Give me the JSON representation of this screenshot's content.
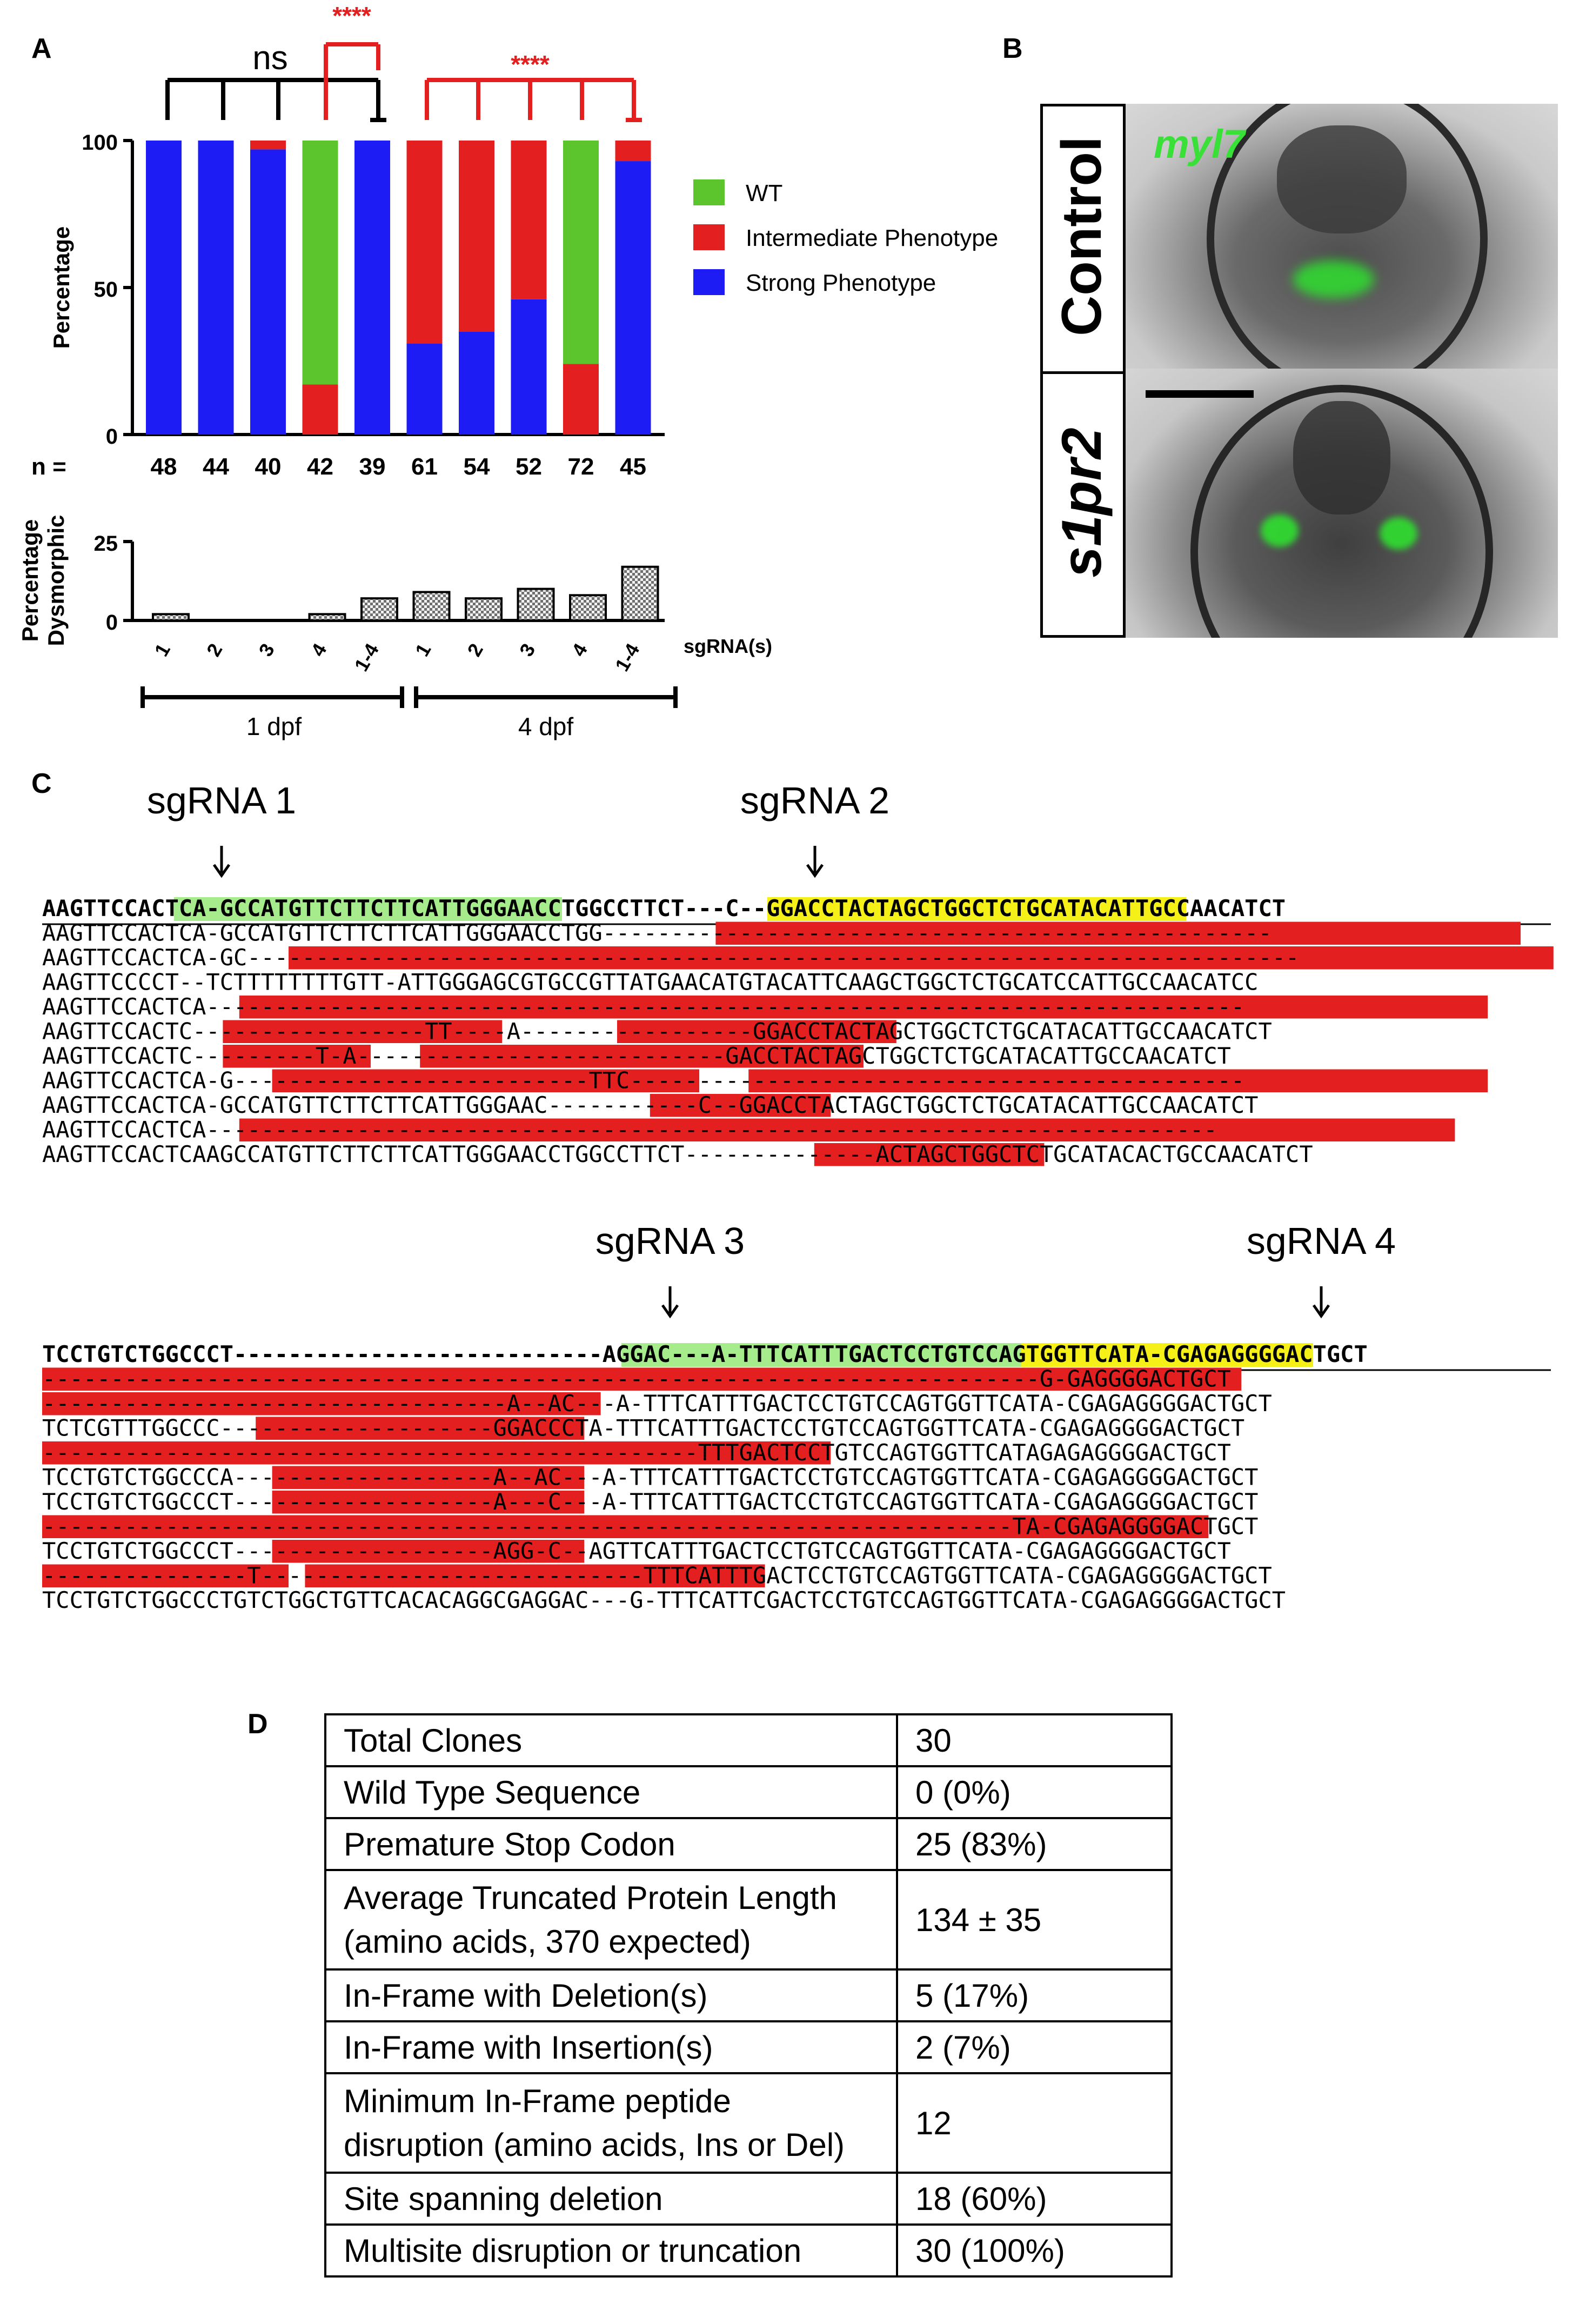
{
  "panels": {
    "a": "A",
    "b": "B",
    "c": "C",
    "d": "D"
  },
  "panelA": {
    "sig": {
      "ns": "ns",
      "stars_top": "****",
      "stars_right": "****"
    },
    "top_chart": {
      "type": "bar",
      "ylabel": "Percentage",
      "yticks": [
        "0",
        "50",
        "100"
      ],
      "ylim": [
        0,
        100
      ],
      "n_prefix": "n =",
      "n_values": [
        "48",
        "44",
        "40",
        "42",
        "39",
        "61",
        "54",
        "52",
        "72",
        "45"
      ],
      "legend": [
        {
          "label": "WT",
          "color": "#5cc42c"
        },
        {
          "label": "Intermediate Phenotype",
          "color": "#e41f1f"
        },
        {
          "label": "Strong Phenotype",
          "color": "#1d1cf5"
        }
      ],
      "bars": [
        {
          "strong": 100,
          "intermediate": 0,
          "wt": 0
        },
        {
          "strong": 100,
          "intermediate": 0,
          "wt": 0
        },
        {
          "strong": 97,
          "intermediate": 3,
          "wt": 0
        },
        {
          "strong": 0,
          "intermediate": 17,
          "wt": 83
        },
        {
          "strong": 100,
          "intermediate": 0,
          "wt": 0
        },
        {
          "strong": 31,
          "intermediate": 69,
          "wt": 0
        },
        {
          "strong": 35,
          "intermediate": 65,
          "wt": 0
        },
        {
          "strong": 46,
          "intermediate": 54,
          "wt": 0
        },
        {
          "strong": 0,
          "intermediate": 24,
          "wt": 76
        },
        {
          "strong": 93,
          "intermediate": 7,
          "wt": 0
        }
      ]
    },
    "bottom_chart": {
      "type": "bar",
      "ylabel_line1": "Percentage",
      "ylabel_line2": "Dysmorphic",
      "yticks": [
        "0",
        "25"
      ],
      "ylim": [
        0,
        25
      ],
      "values": [
        2,
        0,
        0,
        2,
        7,
        9,
        7,
        10,
        8,
        17
      ],
      "categories": [
        "1",
        "2",
        "3",
        "4",
        "1-4",
        "1",
        "2",
        "3",
        "4",
        "1-4"
      ],
      "xlabel": "sgRNA(s)",
      "groups": [
        "1 dpf",
        "4 dpf"
      ]
    }
  },
  "panelB": {
    "label_top": "Control",
    "label_bottom": "s1pr2",
    "marker": "myl7",
    "marker_color": "#38e038"
  },
  "panelC": {
    "colors": {
      "mismatch": "#e41f1f",
      "green": "#a6ec8c",
      "yellow": "#f5f018"
    },
    "guides": [
      "sgRNA 1",
      "sgRNA 2",
      "sgRNA 3",
      "sgRNA 4"
    ],
    "block1": [
      "AAGTTCCACTCA-GCCATGTTCTTCTTCATTGGGAACCTGGCCTTCT---C--GGACCTACTAGCTGGCTCTGCATACATTGCCAACATCT",
      "AAGTTCCACTCA-GCCATGTTCTTCTTCATTGGGAACCTGG-------------------------------------------------",
      "AAGTTCCACTCA-GC-----------------------------------------------------------------------------",
      "AAGTTCCCCT--TCTTTTTTTTGTT-ATTGGGAGCGTGCCGTTATGAACATGTACATTCAAGCTGGCTCTGCATCCATTGCCAACATCC",
      "AAGTTCCACTCA----------------------------------------------------------------------------",
      "AAGTTCCACTC-----------------TT----A-----------------GGACCTACTAGCTGGCTCTGCATACATTGCCAACATCT",
      "AAGTTCCACTC---------T-A---------------------------GACCTACTAGCTGGCTCTGCATACATTGCCAACATCT",
      "AAGTTCCACTCA-G--------------------------TTC---------------------------------------------",
      "AAGTTCCACTCA-GCCATGTTCTTCTTCATTGGGAAC-----------C--GGACCTACTAGCTGGCTCTGCATACATTGCCAACATCT",
      "AAGTTCCACTCA--------------------------------------------------------------------------",
      "AAGTTCCACTCAAGCCATGTTCTTCTTCATTGGGAACCTGGCCTTCT--------------ACTAGCTGGCTCTGCATACACTGCCAACATCT"
    ],
    "block2": [
      "TCCTGTCTGGCCCT---------------------------AGGAC---A-TTTCATTTGACTCCTGTCCAGTGGTTCATA-CGAGAGGGGACTGCT",
      "-------------------------------------------------------------------------G-GAGGGGACTGCT",
      "----------------------------------A--AC---A-TTTCATTTGACTCCTGTCCAGTGGTTCATA-CGAGAGGGGACTGCT",
      "TCTCGTTTGGCCC--------------------GGACCCTA-TTTCATTTGACTCCTGTCCAGTGGTTCATA-CGAGAGGGGACTGCT",
      "------------------------------------------------TTTGACTCCTGTCCAGTGGTTCATAGAGAGGGGACTGCT",
      "TCCTGTCTGGCCCA-------------------A--AC---A-TTTCATTTGACTCCTGTCCAGTGGTTCATA-CGAGAGGGGACTGCT",
      "TCCTGTCTGGCCCT-------------------A---C---A-TTTCATTTGACTCCTGTCCAGTGGTTCATA-CGAGAGGGGACTGCT",
      "-----------------------------------------------------------------------TA-CGAGAGGGGACTGCT",
      "TCCTGTCTGGCCCT-------------------AGG-C--AGTTCATTTGACTCCTGTCCAGTGGTTCATA-CGAGAGGGGACTGCT",
      "---------------T----------------------------TTTCATTTGACTCCTGTCCAGTGGTTCATA-CGAGAGGGGACTGCT",
      "TCCTGTCTGGCCCTGTCTGGCTGTTCACACAGGCGAGGAC---G-TTTCATTCGACTCCTGTCCAGTGGTTCATA-CGAGAGGGGACTGCT"
    ]
  },
  "panelD": {
    "rows": [
      {
        "label": "Total Clones",
        "value": "30"
      },
      {
        "label": "Wild Type Sequence",
        "value": "0 (0%)"
      },
      {
        "label": "Premature Stop Codon",
        "value": "25 (83%)"
      },
      {
        "label": "Average Truncated Protein Length",
        "label2": "(amino acids, 370 expected)",
        "value": "134 ± 35"
      },
      {
        "label": "In-Frame with Deletion(s)",
        "value": "5 (17%)"
      },
      {
        "label": "In-Frame with Insertion(s)",
        "value": "2 (7%)"
      },
      {
        "label": "Minimum In-Frame peptide",
        "label2": "disruption (amino acids, Ins or Del)",
        "value": "12"
      },
      {
        "label": "Site spanning deletion",
        "value": "18 (60%)"
      },
      {
        "label": "Multisite disruption or truncation",
        "value": "30 (100%)"
      }
    ]
  }
}
